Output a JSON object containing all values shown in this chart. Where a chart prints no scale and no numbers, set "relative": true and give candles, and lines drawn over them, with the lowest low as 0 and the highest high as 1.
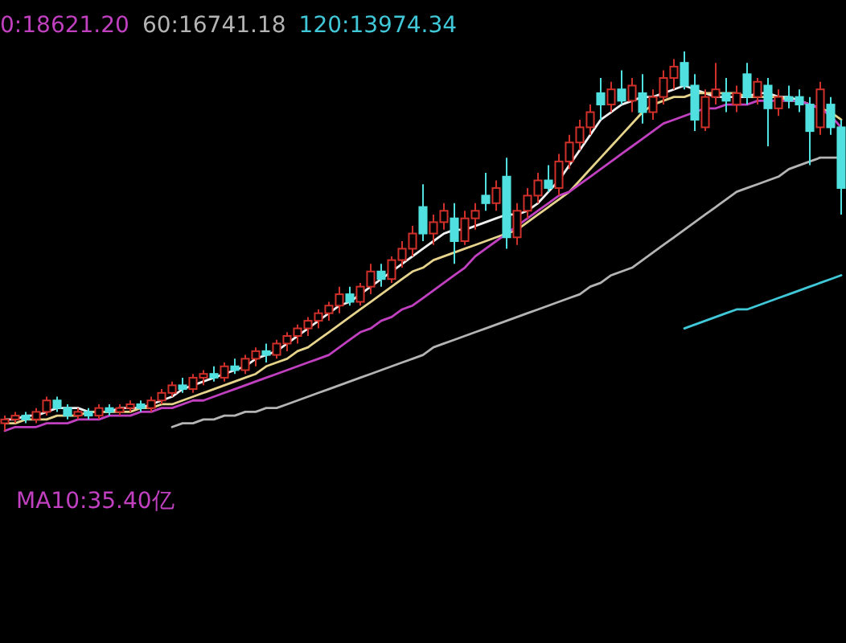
{
  "chart_data": {
    "type": "candlestick",
    "relative": true,
    "legend": "top left",
    "annotations": [
      "MA10:35.40亿"
    ],
    "categories": [
      null,
      null,
      null,
      null,
      null,
      null,
      null,
      null,
      null,
      null,
      null,
      null,
      null,
      null,
      null,
      null,
      null,
      null,
      null,
      null,
      null,
      null,
      null,
      null,
      null,
      null,
      null,
      null,
      null,
      null,
      null,
      null,
      null,
      null,
      null,
      null,
      null,
      null,
      null,
      null,
      null,
      null,
      null,
      null,
      null,
      null,
      null,
      null,
      null,
      null,
      null,
      null,
      null,
      null,
      null,
      null,
      null,
      null,
      null,
      null,
      null,
      null,
      null,
      null,
      null,
      null,
      null,
      null,
      null,
      null,
      null,
      null,
      null,
      null,
      null,
      null,
      null,
      null,
      null,
      null,
      null
    ],
    "ohlc": [
      [
        0.02,
        0.04,
        0.0,
        0.03
      ],
      [
        0.03,
        0.05,
        0.02,
        0.04
      ],
      [
        0.04,
        0.05,
        0.02,
        0.03
      ],
      [
        0.03,
        0.06,
        0.02,
        0.05
      ],
      [
        0.05,
        0.09,
        0.04,
        0.08
      ],
      [
        0.08,
        0.09,
        0.05,
        0.06
      ],
      [
        0.06,
        0.07,
        0.03,
        0.04
      ],
      [
        0.04,
        0.06,
        0.03,
        0.05
      ],
      [
        0.05,
        0.06,
        0.03,
        0.04
      ],
      [
        0.04,
        0.07,
        0.03,
        0.06
      ],
      [
        0.06,
        0.07,
        0.04,
        0.05
      ],
      [
        0.05,
        0.07,
        0.04,
        0.06
      ],
      [
        0.06,
        0.08,
        0.05,
        0.07
      ],
      [
        0.07,
        0.08,
        0.05,
        0.06
      ],
      [
        0.06,
        0.09,
        0.05,
        0.08
      ],
      [
        0.08,
        0.11,
        0.07,
        0.1
      ],
      [
        0.1,
        0.13,
        0.09,
        0.12
      ],
      [
        0.12,
        0.14,
        0.1,
        0.11
      ],
      [
        0.11,
        0.15,
        0.1,
        0.14
      ],
      [
        0.14,
        0.16,
        0.12,
        0.15
      ],
      [
        0.15,
        0.17,
        0.13,
        0.14
      ],
      [
        0.14,
        0.18,
        0.13,
        0.17
      ],
      [
        0.17,
        0.19,
        0.15,
        0.16
      ],
      [
        0.16,
        0.2,
        0.15,
        0.19
      ],
      [
        0.19,
        0.22,
        0.17,
        0.21
      ],
      [
        0.21,
        0.23,
        0.18,
        0.2
      ],
      [
        0.2,
        0.24,
        0.19,
        0.23
      ],
      [
        0.23,
        0.26,
        0.21,
        0.25
      ],
      [
        0.25,
        0.28,
        0.23,
        0.27
      ],
      [
        0.27,
        0.3,
        0.25,
        0.29
      ],
      [
        0.29,
        0.32,
        0.27,
        0.31
      ],
      [
        0.31,
        0.34,
        0.29,
        0.33
      ],
      [
        0.33,
        0.38,
        0.31,
        0.36
      ],
      [
        0.36,
        0.38,
        0.33,
        0.34
      ],
      [
        0.34,
        0.39,
        0.33,
        0.38
      ],
      [
        0.38,
        0.44,
        0.36,
        0.42
      ],
      [
        0.42,
        0.44,
        0.38,
        0.4
      ],
      [
        0.4,
        0.46,
        0.39,
        0.45
      ],
      [
        0.45,
        0.5,
        0.43,
        0.48
      ],
      [
        0.48,
        0.54,
        0.46,
        0.52
      ],
      [
        0.59,
        0.65,
        0.5,
        0.52
      ],
      [
        0.52,
        0.57,
        0.49,
        0.55
      ],
      [
        0.55,
        0.6,
        0.53,
        0.58
      ],
      [
        0.56,
        0.6,
        0.44,
        0.5
      ],
      [
        0.5,
        0.58,
        0.49,
        0.56
      ],
      [
        0.56,
        0.6,
        0.53,
        0.58
      ],
      [
        0.62,
        0.68,
        0.58,
        0.6
      ],
      [
        0.6,
        0.66,
        0.58,
        0.64
      ],
      [
        0.67,
        0.72,
        0.48,
        0.51
      ],
      [
        0.51,
        0.6,
        0.49,
        0.58
      ],
      [
        0.58,
        0.64,
        0.56,
        0.62
      ],
      [
        0.62,
        0.68,
        0.6,
        0.66
      ],
      [
        0.66,
        0.7,
        0.63,
        0.64
      ],
      [
        0.64,
        0.73,
        0.62,
        0.71
      ],
      [
        0.71,
        0.78,
        0.69,
        0.76
      ],
      [
        0.76,
        0.82,
        0.74,
        0.8
      ],
      [
        0.8,
        0.86,
        0.78,
        0.84
      ],
      [
        0.89,
        0.93,
        0.82,
        0.86
      ],
      [
        0.86,
        0.92,
        0.84,
        0.9
      ],
      [
        0.9,
        0.95,
        0.86,
        0.87
      ],
      [
        0.87,
        0.93,
        0.84,
        0.91
      ],
      [
        0.89,
        0.94,
        0.81,
        0.84
      ],
      [
        0.84,
        0.9,
        0.82,
        0.88
      ],
      [
        0.88,
        0.95,
        0.86,
        0.93
      ],
      [
        0.93,
        0.98,
        0.9,
        0.96
      ],
      [
        0.97,
        1.0,
        0.9,
        0.91
      ],
      [
        0.91,
        0.94,
        0.79,
        0.82
      ],
      [
        0.8,
        0.9,
        0.79,
        0.88
      ],
      [
        0.88,
        0.97,
        0.86,
        0.9
      ],
      [
        0.89,
        0.93,
        0.84,
        0.87
      ],
      [
        0.86,
        0.91,
        0.84,
        0.89
      ],
      [
        0.94,
        0.97,
        0.86,
        0.88
      ],
      [
        0.88,
        0.93,
        0.86,
        0.92
      ],
      [
        0.91,
        0.93,
        0.75,
        0.85
      ],
      [
        0.85,
        0.9,
        0.83,
        0.88
      ],
      [
        0.88,
        0.91,
        0.85,
        0.87
      ],
      [
        0.88,
        0.9,
        0.84,
        0.86
      ],
      [
        0.86,
        0.88,
        0.7,
        0.79
      ],
      [
        0.8,
        0.92,
        0.78,
        0.9
      ],
      [
        0.86,
        0.88,
        0.78,
        0.8
      ],
      [
        0.8,
        0.82,
        0.57,
        0.64
      ]
    ],
    "colors": [
      "#d0302a",
      "#d0302a",
      "#50e0e0",
      "#d0302a",
      "#d0302a",
      "#50e0e0",
      "#50e0e0",
      "#d0302a",
      "#50e0e0",
      "#d0302a",
      "#50e0e0",
      "#d0302a",
      "#d0302a",
      "#50e0e0",
      "#d0302a",
      "#d0302a",
      "#d0302a",
      "#50e0e0",
      "#d0302a",
      "#d0302a",
      "#50e0e0",
      "#d0302a",
      "#50e0e0",
      "#d0302a",
      "#d0302a",
      "#50e0e0",
      "#d0302a",
      "#d0302a",
      "#d0302a",
      "#d0302a",
      "#d0302a",
      "#d0302a",
      "#d0302a",
      "#50e0e0",
      "#d0302a",
      "#d0302a",
      "#50e0e0",
      "#d0302a",
      "#d0302a",
      "#d0302a",
      "#50e0e0",
      "#d0302a",
      "#d0302a",
      "#50e0e0",
      "#d0302a",
      "#d0302a",
      "#50e0e0",
      "#d0302a",
      "#50e0e0",
      "#d0302a",
      "#d0302a",
      "#d0302a",
      "#50e0e0",
      "#d0302a",
      "#d0302a",
      "#d0302a",
      "#d0302a",
      "#50e0e0",
      "#d0302a",
      "#50e0e0",
      "#d0302a",
      "#50e0e0",
      "#d0302a",
      "#d0302a",
      "#d0302a",
      "#50e0e0",
      "#50e0e0",
      "#d0302a",
      "#d0302a",
      "#50e0e0",
      "#d0302a",
      "#50e0e0",
      "#d0302a",
      "#50e0e0",
      "#d0302a",
      "#50e0e0",
      "#50e0e0",
      "#50e0e0",
      "#d0302a",
      "#50e0e0",
      "#50e0e0"
    ],
    "series": [
      {
        "type": "line",
        "color": "#f0f0f0",
        "values": [
          0.03,
          0.03,
          0.04,
          0.04,
          0.05,
          0.06,
          0.06,
          0.06,
          0.05,
          0.05,
          0.05,
          0.06,
          0.06,
          0.06,
          0.07,
          0.08,
          0.09,
          0.11,
          0.12,
          0.13,
          0.14,
          0.15,
          0.16,
          0.17,
          0.19,
          0.2,
          0.21,
          0.23,
          0.25,
          0.27,
          0.29,
          0.31,
          0.33,
          0.34,
          0.36,
          0.38,
          0.4,
          0.42,
          0.44,
          0.46,
          0.48,
          0.5,
          0.52,
          0.53,
          0.53,
          0.54,
          0.55,
          0.56,
          0.57,
          0.57,
          0.58,
          0.6,
          0.63,
          0.66,
          0.7,
          0.74,
          0.78,
          0.82,
          0.84,
          0.86,
          0.87,
          0.88,
          0.88,
          0.89,
          0.9,
          0.91,
          0.9,
          0.89,
          0.88,
          0.88,
          0.88,
          0.88,
          0.89,
          0.89,
          0.88,
          0.88,
          0.87,
          0.86,
          0.85,
          null,
          null
        ]
      },
      {
        "type": "line",
        "color": "#e6d48c",
        "values": [
          0.02,
          0.02,
          0.03,
          0.03,
          0.03,
          0.04,
          0.04,
          0.04,
          0.05,
          0.05,
          0.05,
          0.05,
          0.05,
          0.06,
          0.06,
          0.07,
          0.07,
          0.08,
          0.09,
          0.1,
          0.11,
          0.12,
          0.13,
          0.14,
          0.15,
          0.17,
          0.18,
          0.19,
          0.21,
          0.22,
          0.24,
          0.26,
          0.28,
          0.3,
          0.32,
          0.34,
          0.36,
          0.38,
          0.4,
          0.42,
          0.43,
          0.45,
          0.46,
          0.47,
          0.48,
          0.49,
          0.5,
          0.51,
          0.52,
          0.53,
          0.55,
          0.57,
          0.59,
          0.61,
          0.63,
          0.66,
          0.69,
          0.72,
          0.75,
          0.78,
          0.81,
          0.84,
          0.86,
          0.87,
          0.88,
          0.88,
          0.89,
          0.89,
          0.89,
          0.89,
          0.89,
          0.88,
          0.88,
          0.88,
          0.88,
          0.87,
          0.87,
          0.86,
          0.85,
          0.84,
          0.82
        ]
      },
      {
        "type": "line",
        "name": "0:18621.20",
        "color": "#c040c0",
        "values": [
          0.0,
          0.01,
          0.01,
          0.01,
          0.02,
          0.02,
          0.02,
          0.03,
          0.03,
          0.03,
          0.04,
          0.04,
          0.04,
          0.05,
          0.05,
          0.06,
          0.06,
          0.07,
          0.08,
          0.08,
          0.09,
          0.1,
          0.11,
          0.12,
          0.13,
          0.14,
          0.15,
          0.16,
          0.17,
          0.18,
          0.19,
          0.2,
          0.22,
          0.24,
          0.26,
          0.27,
          0.29,
          0.3,
          0.32,
          0.33,
          0.35,
          0.37,
          0.39,
          0.41,
          0.43,
          0.46,
          0.48,
          0.5,
          0.52,
          0.54,
          0.56,
          0.58,
          0.6,
          0.62,
          0.63,
          0.65,
          0.67,
          0.69,
          0.71,
          0.73,
          0.75,
          0.77,
          0.79,
          0.81,
          0.82,
          0.83,
          0.84,
          0.85,
          0.85,
          0.86,
          0.86,
          0.86,
          0.87,
          0.87,
          0.87,
          0.87,
          0.87,
          0.86,
          0.85,
          0.83,
          0.8
        ]
      },
      {
        "type": "line",
        "name": "60:16741.18",
        "color": "#b4b4b4",
        "values": [
          null,
          null,
          null,
          null,
          null,
          null,
          null,
          null,
          null,
          null,
          null,
          null,
          null,
          null,
          null,
          null,
          0.01,
          0.02,
          0.02,
          0.03,
          0.03,
          0.04,
          0.04,
          0.05,
          0.05,
          0.06,
          0.06,
          0.07,
          0.08,
          0.09,
          0.1,
          0.11,
          0.12,
          0.13,
          0.14,
          0.15,
          0.16,
          0.17,
          0.18,
          0.19,
          0.2,
          0.22,
          0.23,
          0.24,
          0.25,
          0.26,
          0.27,
          0.28,
          0.29,
          0.3,
          0.31,
          0.32,
          0.33,
          0.34,
          0.35,
          0.36,
          0.38,
          0.39,
          0.41,
          0.42,
          0.43,
          0.45,
          0.47,
          0.49,
          0.51,
          0.53,
          0.55,
          0.57,
          0.59,
          0.61,
          0.63,
          0.64,
          0.65,
          0.66,
          0.67,
          0.69,
          0.7,
          0.71,
          0.72,
          0.72,
          0.72
        ]
      },
      {
        "type": "line",
        "name": "120:13974.34",
        "color": "#40c8d8",
        "values": [
          null,
          null,
          null,
          null,
          null,
          null,
          null,
          null,
          null,
          null,
          null,
          null,
          null,
          null,
          null,
          null,
          null,
          null,
          null,
          null,
          null,
          null,
          null,
          null,
          null,
          null,
          null,
          null,
          null,
          null,
          null,
          null,
          null,
          null,
          null,
          null,
          null,
          null,
          null,
          null,
          null,
          null,
          null,
          null,
          null,
          null,
          null,
          null,
          null,
          null,
          null,
          null,
          null,
          null,
          null,
          null,
          null,
          null,
          null,
          null,
          null,
          null,
          null,
          null,
          null,
          0.27,
          0.28,
          0.29,
          0.3,
          0.31,
          0.32,
          0.32,
          0.33,
          0.34,
          0.35,
          0.36,
          0.37,
          0.38,
          0.39,
          0.4,
          0.41
        ]
      }
    ]
  }
}
